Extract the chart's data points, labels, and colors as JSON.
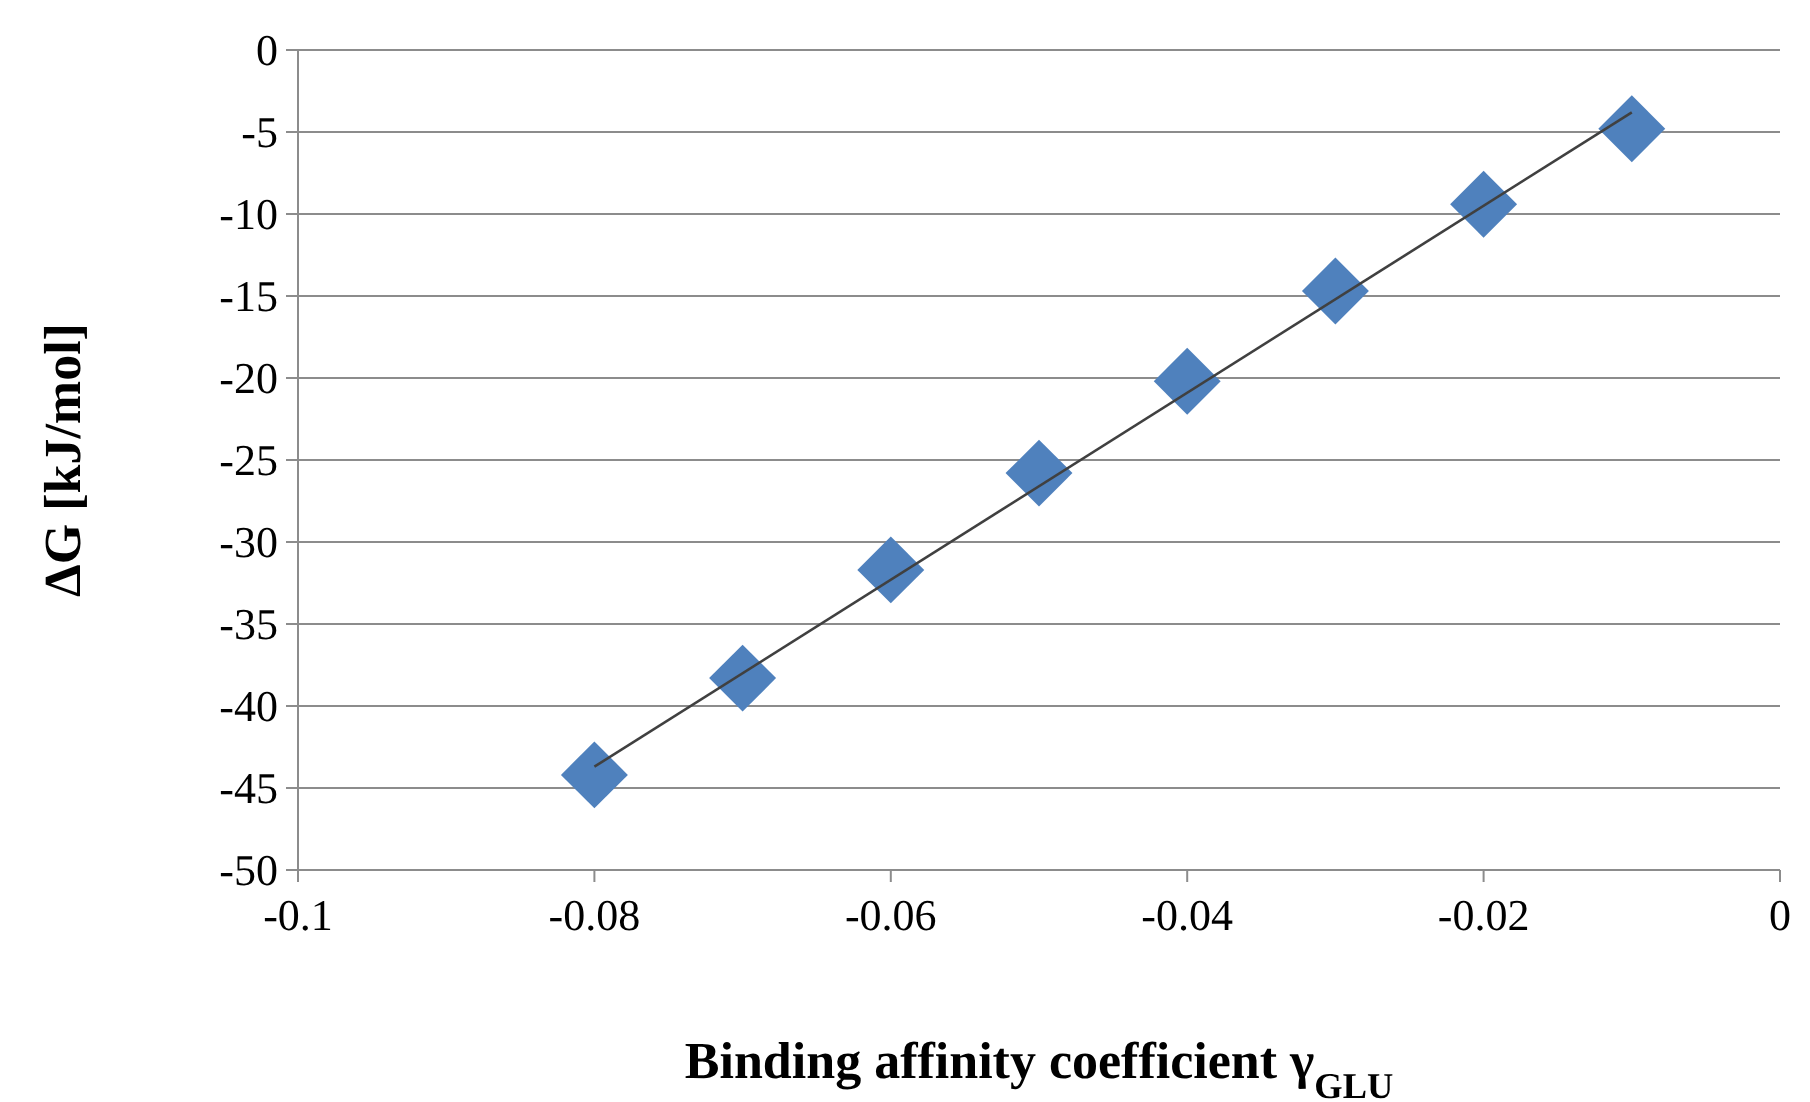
{
  "chart_data": {
    "type": "scatter",
    "xlabel": "Binding affinity coefficient γ$_{GLU}$",
    "ylabel": "ΔG [kJ/mol]",
    "xlim": [
      -0.1,
      0
    ],
    "xticks": [
      -0.1,
      -0.08,
      -0.06,
      -0.04,
      -0.02,
      0
    ],
    "ylim": [
      -50,
      0
    ],
    "yticks": [
      -50,
      -45,
      -40,
      -35,
      -30,
      -25,
      -20,
      -15,
      -10,
      -5,
      0
    ],
    "grid": "y",
    "marker": "diamond",
    "series": [
      {
        "color": "#4f81bd",
        "x": [
          -0.08,
          -0.07,
          -0.06,
          -0.05,
          -0.04,
          -0.03,
          -0.02,
          -0.01
        ],
        "values": [
          -44.2,
          -38.3,
          -31.7,
          -25.8,
          -20.2,
          -14.7,
          -9.4,
          -4.8
        ]
      },
      {
        "type": "line",
        "color": "#404040",
        "marker": "none",
        "line_style": "solid",
        "x": [
          -0.08,
          -0.01
        ],
        "values": [
          -43.7,
          -3.8
        ]
      }
    ]
  }
}
